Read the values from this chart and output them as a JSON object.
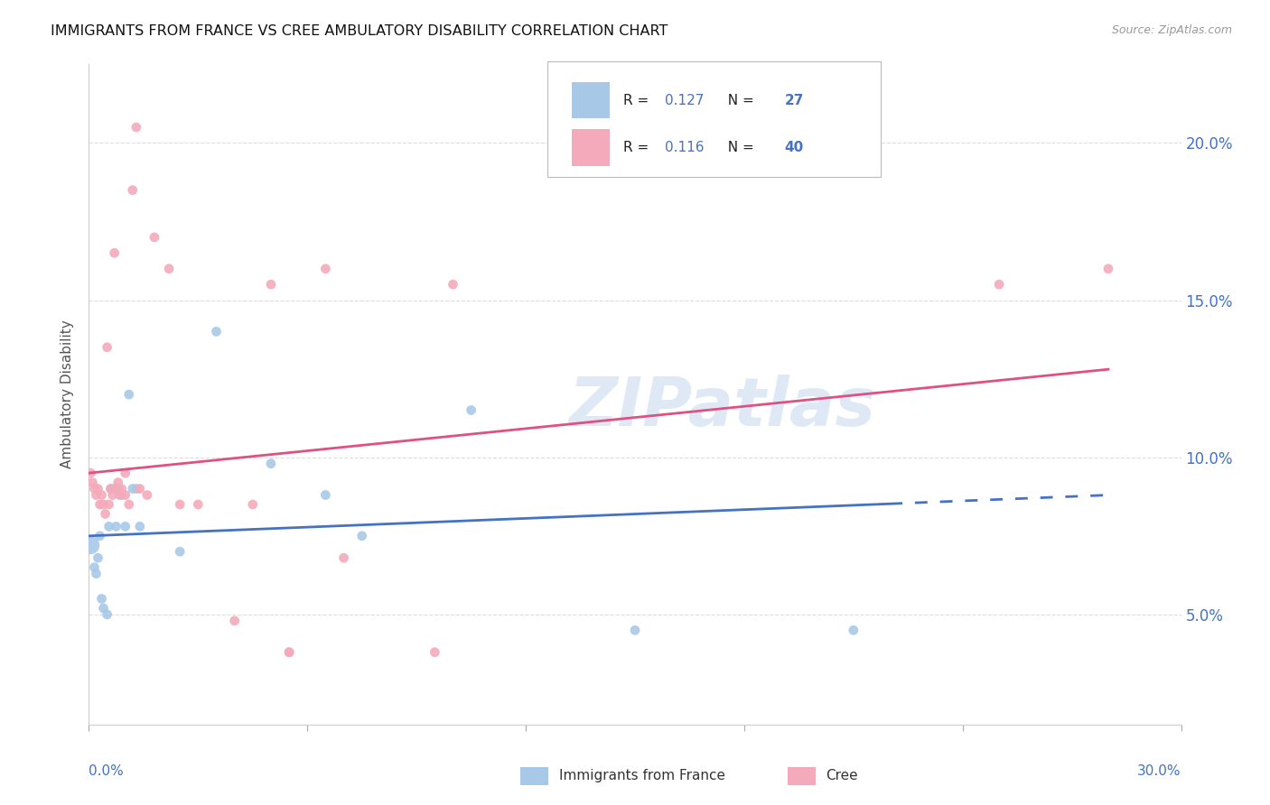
{
  "title": "IMMIGRANTS FROM FRANCE VS CREE AMBULATORY DISABILITY CORRELATION CHART",
  "source": "Source: ZipAtlas.com",
  "ylabel": "Ambulatory Disability",
  "ytick_values": [
    5.0,
    10.0,
    15.0,
    20.0
  ],
  "xlim": [
    0.0,
    30.0
  ],
  "ylim": [
    1.5,
    22.5
  ],
  "legend_label1": "Immigrants from France",
  "legend_label2": "Cree",
  "r1": "0.127",
  "n1": "27",
  "r2": "0.116",
  "n2": "40",
  "color_blue": "#A8C8E8",
  "color_pink": "#F4AABB",
  "color_blue_text": "#4472C4",
  "color_pink_line": "#E05080",
  "watermark": "ZIPatlas",
  "background_color": "#FFFFFF",
  "grid_color": "#DDDDDD",
  "france_x": [
    0.05,
    0.15,
    0.2,
    0.25,
    0.3,
    0.35,
    0.4,
    0.5,
    0.55,
    0.6,
    0.7,
    0.75,
    0.8,
    0.9,
    1.0,
    1.1,
    1.2,
    1.3,
    1.4,
    2.5,
    3.5,
    5.0,
    6.5,
    7.5,
    10.5,
    15.0,
    21.0
  ],
  "france_y": [
    7.2,
    6.5,
    6.3,
    6.8,
    7.5,
    5.5,
    5.2,
    5.0,
    7.8,
    9.0,
    9.0,
    7.8,
    9.0,
    8.8,
    7.8,
    12.0,
    9.0,
    9.0,
    7.8,
    7.0,
    14.0,
    9.8,
    8.8,
    7.5,
    11.5,
    4.5,
    4.5
  ],
  "france_size_big": [
    0
  ],
  "france_big_idx": [
    0
  ],
  "cree_x": [
    0.05,
    0.1,
    0.15,
    0.2,
    0.25,
    0.3,
    0.35,
    0.4,
    0.45,
    0.5,
    0.55,
    0.6,
    0.65,
    0.7,
    0.75,
    0.8,
    0.85,
    0.9,
    1.0,
    1.0,
    1.1,
    1.2,
    1.3,
    1.4,
    1.6,
    1.8,
    2.2,
    3.0,
    4.5,
    5.0,
    5.5,
    6.5,
    9.5,
    10.0,
    25.0,
    28.0,
    2.5,
    4.0,
    5.5,
    7.0
  ],
  "cree_y": [
    9.5,
    9.2,
    9.0,
    8.8,
    9.0,
    8.5,
    8.8,
    8.5,
    8.2,
    13.5,
    8.5,
    9.0,
    8.8,
    16.5,
    9.0,
    9.2,
    8.8,
    9.0,
    8.8,
    9.5,
    8.5,
    18.5,
    20.5,
    9.0,
    8.8,
    17.0,
    16.0,
    8.5,
    8.5,
    15.5,
    3.8,
    16.0,
    3.8,
    15.5,
    15.5,
    16.0,
    8.5,
    4.8,
    3.8,
    6.8
  ],
  "france_line_x": [
    0,
    28
  ],
  "france_line_y": [
    7.5,
    8.8
  ],
  "france_solid_end_x": 22,
  "france_solid_end_y": 8.5,
  "cree_line_x": [
    0,
    28
  ],
  "cree_line_y": [
    9.5,
    12.8
  ]
}
